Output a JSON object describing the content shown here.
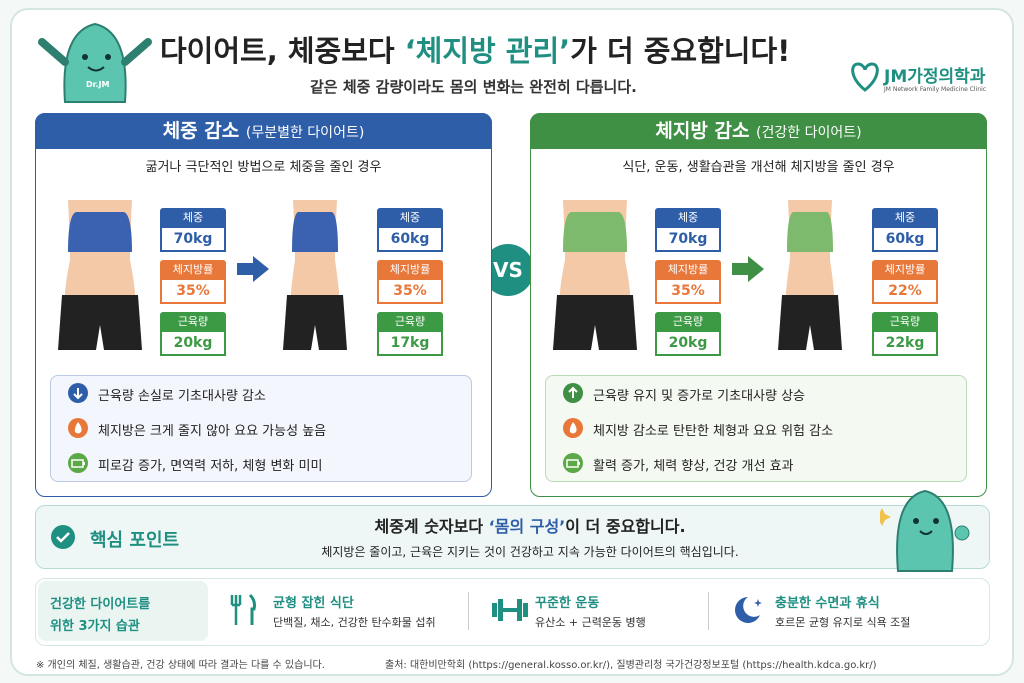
{
  "header": {
    "title_pre": "다이어트, 체중보다 ",
    "title_highlight": "‘체지방 관리’",
    "title_post": "가 더 중요합니다!",
    "subtitle": "같은 체중 감량이라도 몸의 변화는 완전히 다릅니다."
  },
  "logo": {
    "name": "JM가정의학과",
    "sub": "JM Network Family Medicine Clinic"
  },
  "mascot": {
    "label": "Dr.JM"
  },
  "vs": "VS",
  "panels": [
    {
      "title": "체중 감소",
      "title_note": "(무분별한 다이어트)",
      "description": "굶거나 극단적인 방법으로 체중을 줄인 경우",
      "before": [
        {
          "label": "체중",
          "value": "70kg"
        },
        {
          "label": "체지방률",
          "value": "35%"
        },
        {
          "label": "근육량",
          "value": "20kg"
        }
      ],
      "after": [
        {
          "label": "체중",
          "value": "60kg"
        },
        {
          "label": "체지방률",
          "value": "35%"
        },
        {
          "label": "근육량",
          "value": "17kg"
        }
      ],
      "effects": [
        "근육량 손실로 기초대사량 감소",
        "체지방은 크게 줄지 않아 요요 가능성 높음",
        "피로감 증가, 면역력 저하, 체형 변화 미미"
      ]
    },
    {
      "title": "체지방 감소",
      "title_note": "(건강한 다이어트)",
      "description": "식단, 운동, 생활습관을 개선해 체지방을 줄인 경우",
      "before": [
        {
          "label": "체중",
          "value": "70kg"
        },
        {
          "label": "체지방률",
          "value": "35%"
        },
        {
          "label": "근육량",
          "value": "20kg"
        }
      ],
      "after": [
        {
          "label": "체중",
          "value": "60kg"
        },
        {
          "label": "체지방률",
          "value": "22%"
        },
        {
          "label": "근육량",
          "value": "22kg"
        }
      ],
      "effects": [
        "근육량 유지 및 증가로 기초대사량 상승",
        "체지방 감소로 탄탄한 체형과 요요 위험 감소",
        "활력 증가, 체력 향상, 건강 개선 효과"
      ]
    }
  ],
  "key_point": {
    "label": "핵심 포인트",
    "headline_pre": "체중계 숫자보다 ",
    "headline_highlight": "‘몸의 구성’",
    "headline_post": "이 더 중요합니다.",
    "text": "체지방은 줄이고, 근육은 지키는 것이 건강하고 지속 가능한 다이어트의 핵심입니다."
  },
  "habits": {
    "label_lines": [
      "건강한 다이어트를",
      "위한 3가지 습관"
    ],
    "items": [
      {
        "title": "균형 잡힌 식단",
        "desc": "단백질, 채소, 건강한 탄수화물 섭취"
      },
      {
        "title": "꾸준한 운동",
        "desc": "유산소 + 근력운동 병행"
      },
      {
        "title": "충분한 수면과 휴식",
        "desc": "호르몬 균형 유지로 식욕 조절"
      }
    ]
  },
  "footer": {
    "note": "※ 개인의 체질, 생활습관, 건강 상태에 따라 결과는 다를 수 있습니다.",
    "source": "출처: 대한비만학회 (https://general.kosso.or.kr/), 질병관리청 국가건강정보포털 (https://health.kdca.go.kr/)"
  }
}
